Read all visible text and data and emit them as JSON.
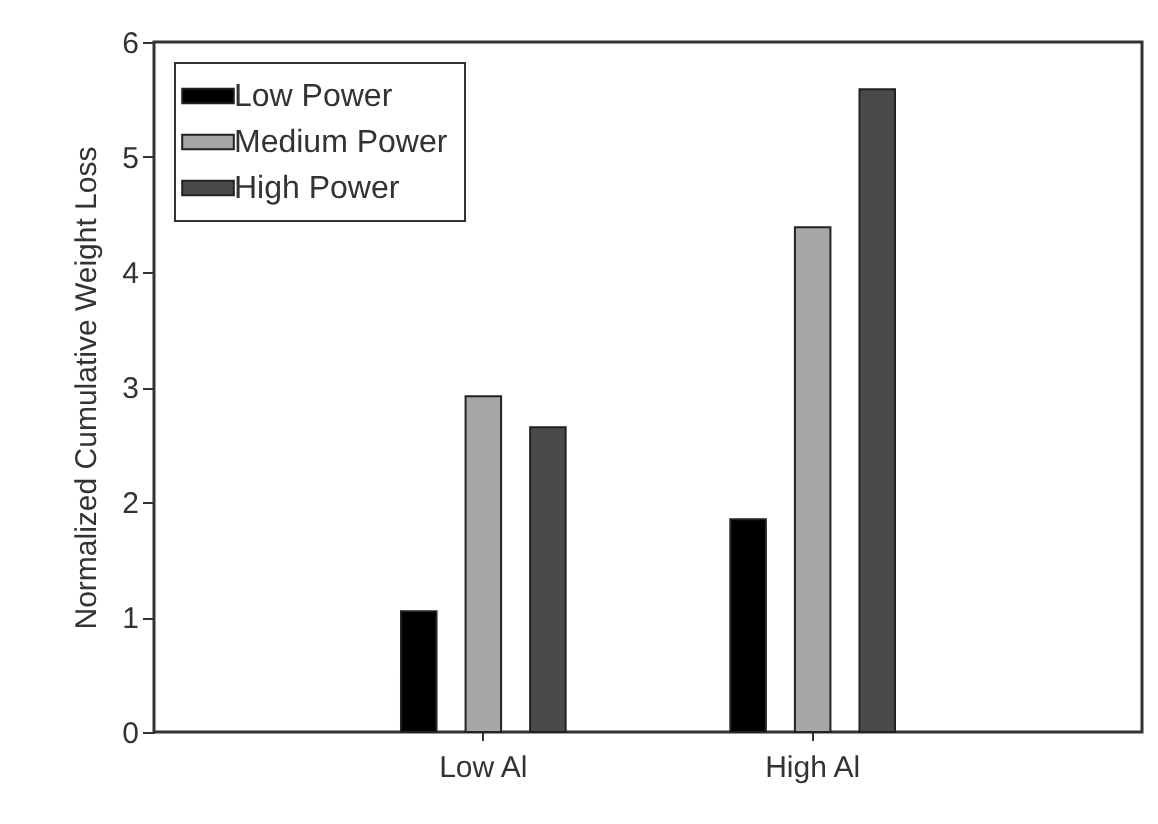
{
  "chart_data": {
    "type": "bar",
    "ylabel": "Normalized Cumulative Weight Loss",
    "categories": [
      "Low Al",
      "High Al"
    ],
    "series": [
      {
        "name": "Low Power",
        "color": "#000000",
        "values": [
          1.05,
          1.85
        ]
      },
      {
        "name": "Medium Power",
        "color": "#a6a6a6",
        "values": [
          2.92,
          4.39
        ]
      },
      {
        "name": "High Power",
        "color": "#4a4a4a",
        "values": [
          2.65,
          5.59
        ]
      }
    ],
    "ylim": [
      0,
      6
    ],
    "yticks": [
      0,
      1,
      2,
      3,
      4,
      5,
      6
    ],
    "grid": false,
    "legend": "top left"
  }
}
